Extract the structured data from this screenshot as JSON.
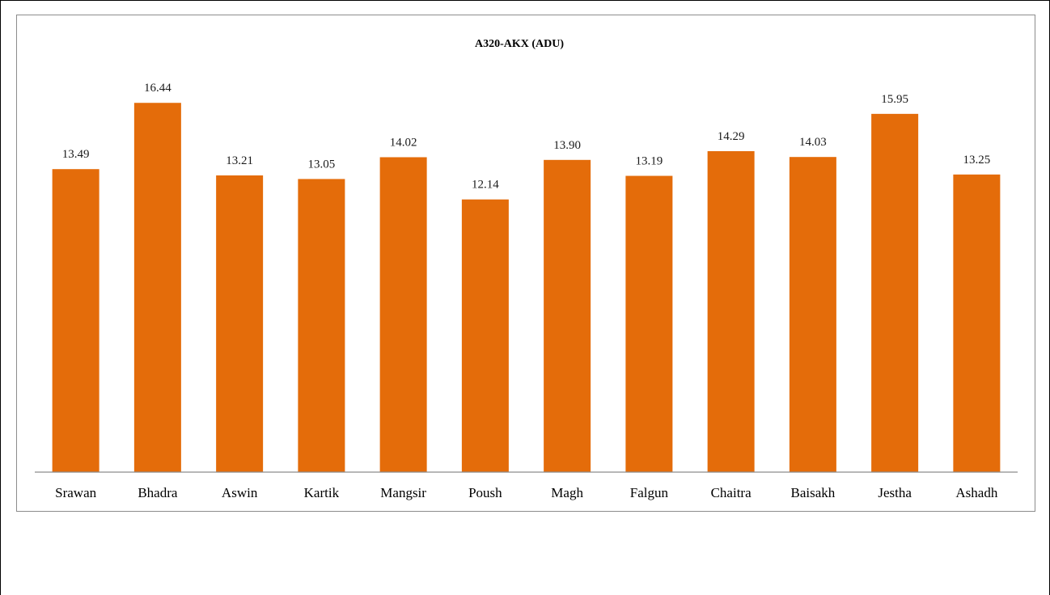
{
  "chart_data": {
    "type": "bar",
    "title": "A320-AKX (ADU)",
    "xlabel": "",
    "ylabel": "",
    "categories": [
      "Srawan",
      "Bhadra",
      "Aswin",
      "Kartik",
      "Mangsir",
      "Poush",
      "Magh",
      "Falgun",
      "Chaitra",
      "Baisakh",
      "Jestha",
      "Ashadh"
    ],
    "values": [
      13.49,
      16.44,
      13.21,
      13.05,
      14.02,
      12.14,
      13.9,
      13.19,
      14.29,
      14.03,
      15.95,
      13.25
    ],
    "value_labels": [
      "13.49",
      "16.44",
      "13.21",
      "13.05",
      "14.02",
      "12.14",
      "13.90",
      "13.19",
      "14.29",
      "14.03",
      "15.95",
      "13.25"
    ],
    "ylim": [
      0,
      18.5
    ],
    "bar_color": "#e46c0a",
    "axis_color": "#8c8c8c",
    "grid": false,
    "legend": "none"
  }
}
